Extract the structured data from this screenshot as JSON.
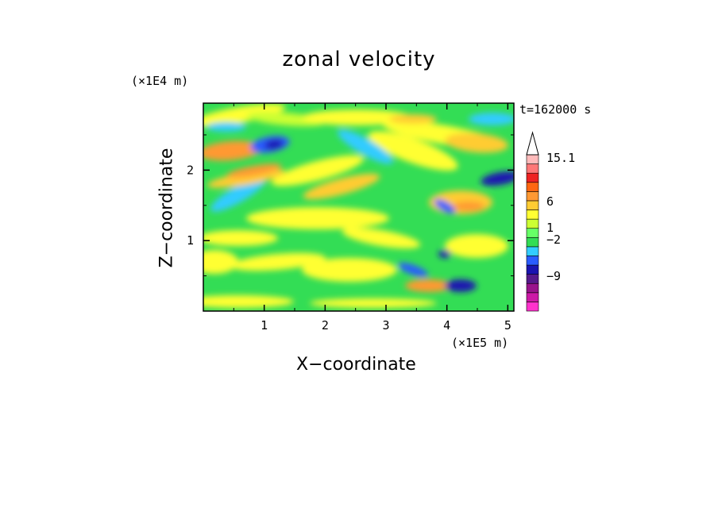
{
  "chart_data": {
    "type": "heatmap",
    "title": "zonal velocity",
    "xlabel": "X−coordinate",
    "ylabel": "Z−coordinate",
    "x_unit": "(×1E5 m)",
    "y_unit": "(×1E4 m)",
    "time_label": "t=162000 s",
    "xlim": [
      0,
      5.1
    ],
    "ylim": [
      0,
      2.95
    ],
    "x_ticks": [
      1,
      2,
      3,
      4,
      5
    ],
    "y_ticks": [
      1,
      2
    ],
    "x_tick_labels": [
      "1",
      "2",
      "3",
      "4",
      "5"
    ],
    "y_tick_labels": [
      "1",
      "2"
    ],
    "colorbar": {
      "colors": [
        "#ff33cc",
        "#cc1aa6",
        "#99148c",
        "#551a8b",
        "#1a14b0",
        "#2a5cff",
        "#33ccff",
        "#33dd55",
        "#66ff66",
        "#ccff33",
        "#ffff33",
        "#ffcc33",
        "#ff9933",
        "#ff6611",
        "#ee2222",
        "#ff7777",
        "#ffbbbb"
      ],
      "labels": [
        "15.1",
        "6",
        "1",
        "−2",
        "−9"
      ],
      "label_values": [
        15.1,
        6,
        1,
        -2,
        -9
      ]
    }
  }
}
